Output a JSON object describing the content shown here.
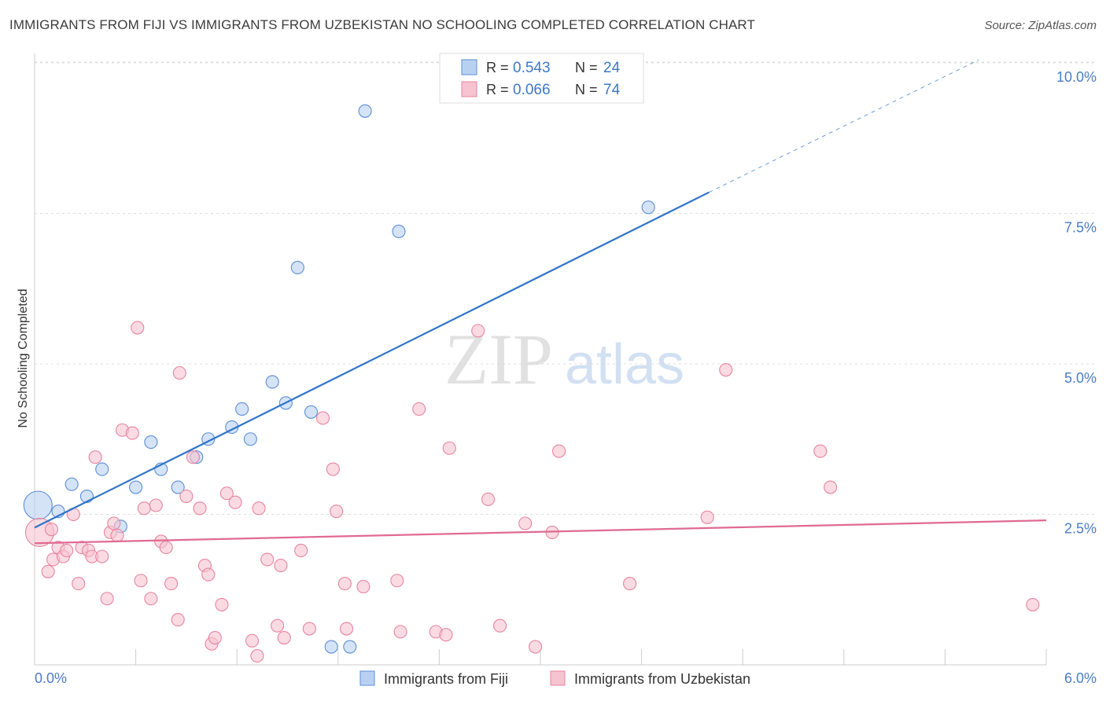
{
  "chart_data": {
    "type": "scatter",
    "title": "IMMIGRANTS FROM FIJI VS IMMIGRANTS FROM UZBEKISTAN NO SCHOOLING COMPLETED CORRELATION CHART",
    "source": "Source: ZipAtlas.com",
    "ylabel": "No Schooling Completed",
    "xlabel": "",
    "xlim": [
      0,
      6.0
    ],
    "ylim": [
      0,
      10.0
    ],
    "x_tick_labels": [
      "0.0%",
      "6.0%"
    ],
    "y_ticks": [
      {
        "value": 2.5,
        "label": "2.5%"
      },
      {
        "value": 5.0,
        "label": "5.0%"
      },
      {
        "value": 7.5,
        "label": "7.5%"
      },
      {
        "value": 10.0,
        "label": "10.0%"
      }
    ],
    "watermark": {
      "zip": "ZIP",
      "atlas": "atlas"
    },
    "legend_top": [
      {
        "r_label": "R =",
        "r_value": "0.543",
        "n_label": "N =",
        "n_value": "24"
      },
      {
        "r_label": "R =",
        "r_value": "0.066",
        "n_label": "N =",
        "n_value": "74"
      }
    ],
    "series": [
      {
        "name": "Immigrants from Fiji",
        "color": "#5b8ed6",
        "fill": "#b9d1f1",
        "trend_color": "#2f74c9",
        "trend": {
          "x0": 0.0,
          "y0": 2.28,
          "x1": 4.0,
          "y1": 7.85,
          "dash_x1": 5.6,
          "dash_y1": 10.05
        },
        "points": [
          {
            "x": 0.02,
            "y": 2.65,
            "big": true
          },
          {
            "x": 0.14,
            "y": 2.55
          },
          {
            "x": 0.22,
            "y": 3.0
          },
          {
            "x": 0.31,
            "y": 2.8
          },
          {
            "x": 0.4,
            "y": 3.25
          },
          {
            "x": 0.51,
            "y": 2.3
          },
          {
            "x": 0.6,
            "y": 2.95
          },
          {
            "x": 0.69,
            "y": 3.7
          },
          {
            "x": 0.75,
            "y": 3.25
          },
          {
            "x": 0.85,
            "y": 2.95
          },
          {
            "x": 0.96,
            "y": 3.45
          },
          {
            "x": 1.03,
            "y": 3.75
          },
          {
            "x": 1.17,
            "y": 3.95
          },
          {
            "x": 1.23,
            "y": 4.25
          },
          {
            "x": 1.28,
            "y": 3.75
          },
          {
            "x": 1.41,
            "y": 4.7
          },
          {
            "x": 1.49,
            "y": 4.35
          },
          {
            "x": 1.64,
            "y": 4.2
          },
          {
            "x": 1.56,
            "y": 6.6
          },
          {
            "x": 2.16,
            "y": 7.2
          },
          {
            "x": 1.76,
            "y": 0.3
          },
          {
            "x": 1.87,
            "y": 0.3
          },
          {
            "x": 1.96,
            "y": 9.2
          },
          {
            "x": 3.64,
            "y": 7.6
          }
        ]
      },
      {
        "name": "Immigrants from Uzbekistan",
        "color": "#e7849f",
        "fill": "#f6c3d1",
        "trend_color": "#e06a92",
        "trend": {
          "x0": 0.0,
          "y0": 2.02,
          "x1": 6.0,
          "y1": 2.4
        },
        "points": [
          {
            "x": 0.03,
            "y": 2.2,
            "big": true
          },
          {
            "x": 0.08,
            "y": 1.55
          },
          {
            "x": 0.11,
            "y": 1.75
          },
          {
            "x": 0.14,
            "y": 1.95
          },
          {
            "x": 0.17,
            "y": 1.8
          },
          {
            "x": 0.19,
            "y": 1.9
          },
          {
            "x": 0.23,
            "y": 2.5
          },
          {
            "x": 0.26,
            "y": 1.35
          },
          {
            "x": 0.28,
            "y": 1.95
          },
          {
            "x": 0.32,
            "y": 1.9
          },
          {
            "x": 0.34,
            "y": 1.8
          },
          {
            "x": 0.36,
            "y": 3.45
          },
          {
            "x": 0.4,
            "y": 1.8
          },
          {
            "x": 0.43,
            "y": 1.1
          },
          {
            "x": 0.45,
            "y": 2.2
          },
          {
            "x": 0.47,
            "y": 2.35
          },
          {
            "x": 0.49,
            "y": 2.15
          },
          {
            "x": 0.52,
            "y": 3.9
          },
          {
            "x": 0.58,
            "y": 3.85
          },
          {
            "x": 0.61,
            "y": 5.6
          },
          {
            "x": 0.63,
            "y": 1.4
          },
          {
            "x": 0.65,
            "y": 2.6
          },
          {
            "x": 0.69,
            "y": 1.1
          },
          {
            "x": 0.72,
            "y": 2.65
          },
          {
            "x": 0.75,
            "y": 2.05
          },
          {
            "x": 0.78,
            "y": 1.95
          },
          {
            "x": 0.81,
            "y": 1.35
          },
          {
            "x": 0.85,
            "y": 0.75
          },
          {
            "x": 0.86,
            "y": 4.85
          },
          {
            "x": 0.9,
            "y": 2.8
          },
          {
            "x": 0.94,
            "y": 3.45
          },
          {
            "x": 0.98,
            "y": 2.6
          },
          {
            "x": 1.01,
            "y": 1.65
          },
          {
            "x": 1.03,
            "y": 1.5
          },
          {
            "x": 1.05,
            "y": 0.35
          },
          {
            "x": 1.07,
            "y": 0.45
          },
          {
            "x": 1.11,
            "y": 1.0
          },
          {
            "x": 1.14,
            "y": 2.85
          },
          {
            "x": 1.19,
            "y": 2.7
          },
          {
            "x": 1.29,
            "y": 0.4
          },
          {
            "x": 1.32,
            "y": 0.15
          },
          {
            "x": 1.33,
            "y": 2.6
          },
          {
            "x": 1.38,
            "y": 1.75
          },
          {
            "x": 1.44,
            "y": 0.65
          },
          {
            "x": 1.46,
            "y": 1.65
          },
          {
            "x": 1.48,
            "y": 0.45
          },
          {
            "x": 1.58,
            "y": 1.9
          },
          {
            "x": 1.63,
            "y": 0.6
          },
          {
            "x": 1.71,
            "y": 4.1
          },
          {
            "x": 1.77,
            "y": 3.25
          },
          {
            "x": 1.79,
            "y": 2.55
          },
          {
            "x": 1.84,
            "y": 1.35
          },
          {
            "x": 1.85,
            "y": 0.6
          },
          {
            "x": 1.95,
            "y": 1.3
          },
          {
            "x": 2.15,
            "y": 1.4
          },
          {
            "x": 2.17,
            "y": 0.55
          },
          {
            "x": 2.28,
            "y": 4.25
          },
          {
            "x": 2.38,
            "y": 0.55
          },
          {
            "x": 2.44,
            "y": 0.5
          },
          {
            "x": 2.46,
            "y": 3.6
          },
          {
            "x": 2.63,
            "y": 5.55
          },
          {
            "x": 2.69,
            "y": 2.75
          },
          {
            "x": 2.76,
            "y": 0.65
          },
          {
            "x": 2.91,
            "y": 2.35
          },
          {
            "x": 2.97,
            "y": 0.3
          },
          {
            "x": 3.07,
            "y": 2.2
          },
          {
            "x": 3.11,
            "y": 3.55
          },
          {
            "x": 3.53,
            "y": 1.35
          },
          {
            "x": 3.99,
            "y": 2.45
          },
          {
            "x": 4.1,
            "y": 4.9
          },
          {
            "x": 4.66,
            "y": 3.55
          },
          {
            "x": 4.72,
            "y": 2.95
          },
          {
            "x": 5.92,
            "y": 1.0
          },
          {
            "x": 0.1,
            "y": 2.25
          }
        ]
      }
    ]
  },
  "colors": {
    "axis_tick_text": "#4a7cc4",
    "grid": "#dddddd",
    "axis": "#cccccc",
    "title_text": "#3c3c3c"
  }
}
